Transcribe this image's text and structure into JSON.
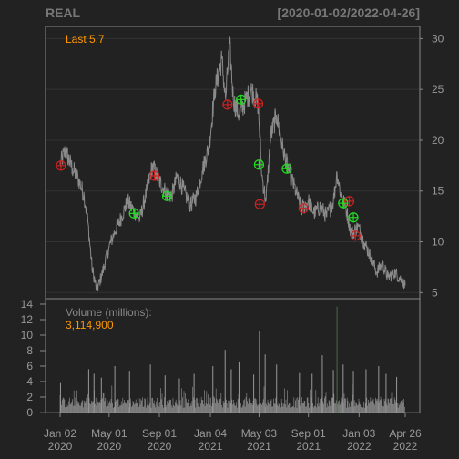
{
  "header": {
    "symbol": "REAL",
    "date_range": "[2020-01-02/2022-04-26]"
  },
  "price_panel": {
    "last_label": "Last 5.7"
  },
  "volume_panel": {
    "label": "Volume (millions):",
    "last_value": "3,114,900"
  },
  "colors": {
    "background": "#222222",
    "grid": "#333333",
    "frame": "#888888",
    "axis_text": "#999999",
    "price_line": "#888888",
    "volume_bars": "#999999",
    "volume_spike": "#4a6a4a",
    "buy_marker": "#22dd22",
    "sell_marker": "#cc2222",
    "highlight_text": "#ff9900",
    "header_text": "#777777"
  },
  "chart_data": {
    "type": "line",
    "symbol": "REAL",
    "x_start": "2020-01-02",
    "x_end": "2022-04-26",
    "x_tick_labels": [
      {
        "date": "2020-01-02",
        "line1": "Jan 02",
        "line2": "2020"
      },
      {
        "date": "2020-05-01",
        "line1": "May 01",
        "line2": "2020"
      },
      {
        "date": "2020-09-01",
        "line1": "Sep 01",
        "line2": "2020"
      },
      {
        "date": "2021-01-04",
        "line1": "Jan 04",
        "line2": "2021"
      },
      {
        "date": "2021-05-03",
        "line1": "May 03",
        "line2": "2021"
      },
      {
        "date": "2021-09-01",
        "line1": "Sep 01",
        "line2": "2021"
      },
      {
        "date": "2022-01-03",
        "line1": "Jan 03",
        "line2": "2022"
      },
      {
        "date": "2022-04-26",
        "line1": "Apr 26",
        "line2": "2022"
      }
    ],
    "price": {
      "y_ticks": [
        5,
        10,
        15,
        20,
        25,
        30
      ],
      "ylim": [
        4.4,
        31.2
      ],
      "last": 5.7,
      "points": [
        [
          "2020-01-02",
          17.6
        ],
        [
          "2020-01-15",
          19.0
        ],
        [
          "2020-02-01",
          17.2
        ],
        [
          "2020-02-15",
          16.3
        ],
        [
          "2020-03-01",
          14.5
        ],
        [
          "2020-03-10",
          12.0
        ],
        [
          "2020-03-20",
          7.5
        ],
        [
          "2020-04-01",
          5.2
        ],
        [
          "2020-04-15",
          7.0
        ],
        [
          "2020-05-01",
          9.5
        ],
        [
          "2020-05-15",
          11.0
        ],
        [
          "2020-06-01",
          12.5
        ],
        [
          "2020-06-15",
          14.0
        ],
        [
          "2020-07-01",
          13.0
        ],
        [
          "2020-07-15",
          12.2
        ],
        [
          "2020-08-01",
          15.0
        ],
        [
          "2020-08-15",
          17.5
        ],
        [
          "2020-09-01",
          16.0
        ],
        [
          "2020-09-15",
          15.0
        ],
        [
          "2020-10-01",
          14.5
        ],
        [
          "2020-10-15",
          16.5
        ],
        [
          "2020-11-01",
          15.0
        ],
        [
          "2020-11-15",
          13.5
        ],
        [
          "2020-12-01",
          14.5
        ],
        [
          "2020-12-15",
          17.0
        ],
        [
          "2021-01-01",
          19.5
        ],
        [
          "2021-01-15",
          25.0
        ],
        [
          "2021-02-01",
          28.0
        ],
        [
          "2021-02-10",
          24.0
        ],
        [
          "2021-02-20",
          29.5
        ],
        [
          "2021-03-01",
          24.0
        ],
        [
          "2021-03-15",
          22.5
        ],
        [
          "2021-04-01",
          24.0
        ],
        [
          "2021-04-15",
          25.0
        ],
        [
          "2021-05-01",
          23.5
        ],
        [
          "2021-05-10",
          16.5
        ],
        [
          "2021-05-20",
          14.0
        ],
        [
          "2021-06-01",
          20.5
        ],
        [
          "2021-06-15",
          22.5
        ],
        [
          "2021-07-01",
          19.0
        ],
        [
          "2021-07-15",
          17.0
        ],
        [
          "2021-08-01",
          15.0
        ],
        [
          "2021-08-15",
          13.2
        ],
        [
          "2021-09-01",
          14.0
        ],
        [
          "2021-09-15",
          12.8
        ],
        [
          "2021-10-01",
          13.5
        ],
        [
          "2021-10-15",
          12.5
        ],
        [
          "2021-11-01",
          14.0
        ],
        [
          "2021-11-10",
          16.8
        ],
        [
          "2021-11-20",
          14.5
        ],
        [
          "2021-12-01",
          13.5
        ],
        [
          "2021-12-15",
          10.8
        ],
        [
          "2022-01-01",
          11.5
        ],
        [
          "2022-01-15",
          10.0
        ],
        [
          "2022-02-01",
          8.5
        ],
        [
          "2022-02-15",
          7.0
        ],
        [
          "2022-03-01",
          7.8
        ],
        [
          "2022-03-15",
          6.5
        ],
        [
          "2022-04-01",
          7.0
        ],
        [
          "2022-04-15",
          6.3
        ],
        [
          "2022-04-26",
          5.7
        ]
      ],
      "buy_signals": [
        [
          "2020-07-01",
          12.8
        ],
        [
          "2020-09-20",
          14.5
        ],
        [
          "2021-03-20",
          24.0
        ],
        [
          "2021-05-03",
          17.6
        ],
        [
          "2021-07-10",
          17.2
        ],
        [
          "2021-11-25",
          13.8
        ],
        [
          "2021-12-20",
          12.4
        ]
      ],
      "sell_signals": [
        [
          "2020-01-04",
          17.5
        ],
        [
          "2020-08-20",
          16.5
        ],
        [
          "2021-02-15",
          23.5
        ],
        [
          "2021-05-01",
          23.6
        ],
        [
          "2021-05-05",
          13.7
        ],
        [
          "2021-08-20",
          13.3
        ],
        [
          "2021-12-10",
          14.0
        ],
        [
          "2021-12-25",
          10.6
        ]
      ]
    },
    "volume": {
      "label": "Volume (millions):",
      "y_ticks": [
        0,
        2,
        4,
        6,
        8,
        10,
        12,
        14
      ],
      "ylim": [
        0,
        14
      ],
      "last": 3114900,
      "spikes": [
        [
          "2020-01-03",
          3.8
        ],
        [
          "2020-03-12",
          5.6
        ],
        [
          "2020-03-25",
          5.0
        ],
        [
          "2020-04-12",
          4.5
        ],
        [
          "2020-05-15",
          6.0
        ],
        [
          "2020-06-20",
          5.4
        ],
        [
          "2020-08-10",
          6.2
        ],
        [
          "2020-09-15",
          4.8
        ],
        [
          "2020-10-20",
          4.4
        ],
        [
          "2020-11-25",
          5.0
        ],
        [
          "2021-01-10",
          6.0
        ],
        [
          "2021-01-25",
          4.8
        ],
        [
          "2021-02-09",
          8.1
        ],
        [
          "2021-02-24",
          5.6
        ],
        [
          "2021-03-15",
          6.6
        ],
        [
          "2021-04-20",
          4.9
        ],
        [
          "2021-05-04",
          10.5
        ],
        [
          "2021-05-18",
          7.5
        ],
        [
          "2021-06-15",
          6.2
        ],
        [
          "2021-08-10",
          5.1
        ],
        [
          "2021-09-10",
          5.0
        ],
        [
          "2021-10-05",
          7.4
        ],
        [
          "2021-11-01",
          5.5
        ],
        [
          "2021-11-10",
          13.7
        ],
        [
          "2021-11-25",
          6.2
        ],
        [
          "2021-12-20",
          5.4
        ],
        [
          "2022-01-20",
          5.6
        ],
        [
          "2022-02-20",
          6.0
        ],
        [
          "2022-03-10",
          5.0
        ],
        [
          "2022-04-05",
          4.6
        ]
      ]
    }
  }
}
